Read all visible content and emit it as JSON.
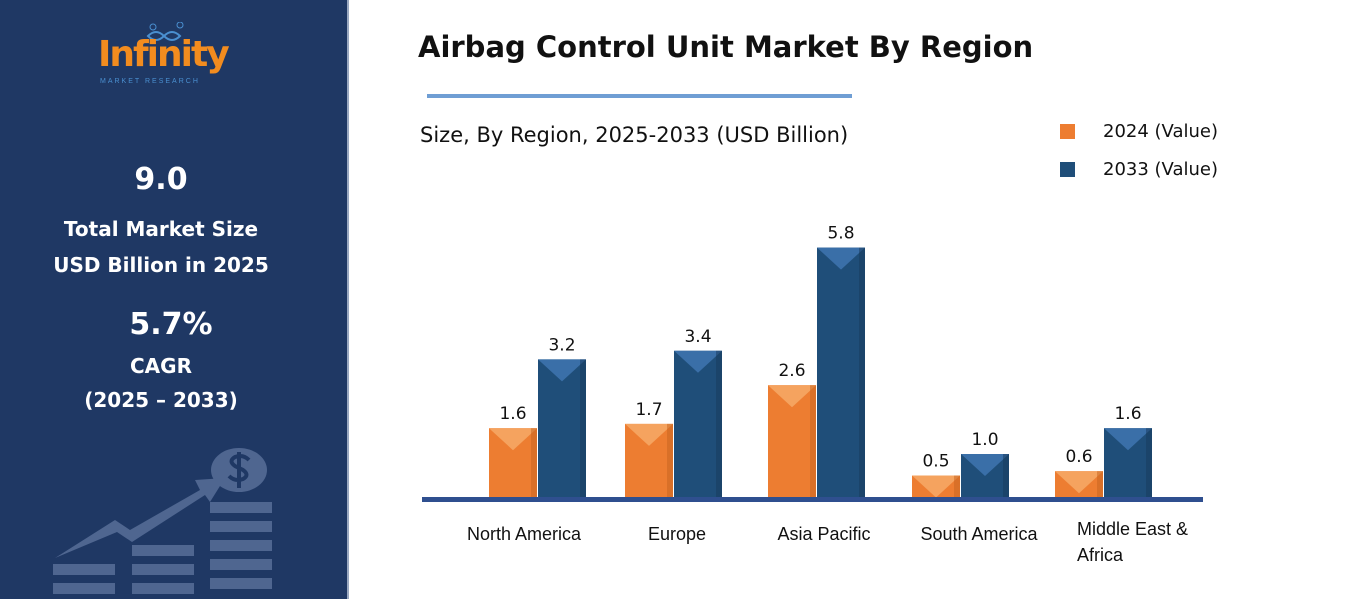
{
  "brand": {
    "name": "Infinity",
    "tagline": "MARKET RESEARCH"
  },
  "sidebar": {
    "market_size": "9.0",
    "market_size_label_1": "Total Market Size",
    "market_size_label_2": "USD Billion in 2025",
    "cagr": "5.7%",
    "cagr_label": "CAGR",
    "cagr_period": "(2025 – 2033)",
    "icon": "growth-chart-dollar-icon"
  },
  "colors": {
    "panel": "#1f3864",
    "series_2024": "#ed7d31",
    "series_2033": "#1f4e79",
    "accent": "#6f9ed4"
  },
  "chart_data": {
    "type": "bar",
    "title": "Airbag Control Unit Market By Region",
    "subtitle": "Size, By Region, 2025-2033 (USD Billion)",
    "categories": [
      "North America",
      "Europe",
      "Asia Pacific",
      "South America",
      "Middle East & Africa"
    ],
    "series": [
      {
        "name": "2024 (Value)",
        "values": [
          1.6,
          1.7,
          2.6,
          0.5,
          0.6
        ]
      },
      {
        "name": "2033 (Value)",
        "values": [
          3.2,
          3.4,
          5.8,
          1.0,
          1.6
        ]
      }
    ],
    "legend": "top-right",
    "grid": false,
    "data_labels": true
  }
}
